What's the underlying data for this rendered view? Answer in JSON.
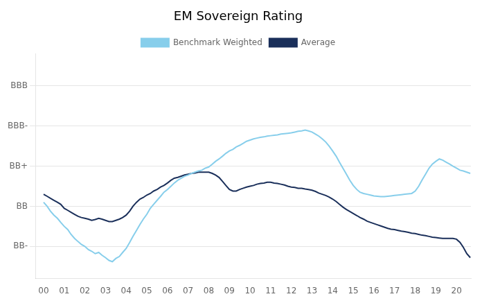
{
  "chart_data": {
    "type": "line",
    "title": "EM Sovereign Rating",
    "legend": "top",
    "grid": "y",
    "xlim": [
      1999.6,
      2020.7
    ],
    "xticks": [
      {
        "value": 2000,
        "label": "00"
      },
      {
        "value": 2001,
        "label": "01"
      },
      {
        "value": 2002,
        "label": "02"
      },
      {
        "value": 2003,
        "label": "03"
      },
      {
        "value": 2004,
        "label": "04"
      },
      {
        "value": 2005,
        "label": "05"
      },
      {
        "value": 2006,
        "label": "06"
      },
      {
        "value": 2007,
        "label": "07"
      },
      {
        "value": 2008,
        "label": "08"
      },
      {
        "value": 2009,
        "label": "09"
      },
      {
        "value": 2010,
        "label": "10"
      },
      {
        "value": 2011,
        "label": "11"
      },
      {
        "value": 2012,
        "label": "12"
      },
      {
        "value": 2013,
        "label": "13"
      },
      {
        "value": 2014,
        "label": "14"
      },
      {
        "value": 2015,
        "label": "15"
      },
      {
        "value": 2016,
        "label": "16"
      },
      {
        "value": 2017,
        "label": "17"
      },
      {
        "value": 2018,
        "label": "18"
      },
      {
        "value": 2019,
        "label": "19"
      },
      {
        "value": 2020,
        "label": "20"
      }
    ],
    "ylim": [
      1.2,
      6.8
    ],
    "yticks": [
      {
        "value": 6,
        "label": "BBB"
      },
      {
        "value": 5,
        "label": "BBB-"
      },
      {
        "value": 4,
        "label": "BB+"
      },
      {
        "value": 3,
        "label": "BB"
      },
      {
        "value": 2,
        "label": "BB-"
      }
    ],
    "x": [
      2000,
      2000.17,
      2000.33,
      2000.5,
      2000.67,
      2000.83,
      2001,
      2001.17,
      2001.33,
      2001.5,
      2001.67,
      2001.83,
      2002,
      2002.17,
      2002.33,
      2002.5,
      2002.67,
      2002.83,
      2003,
      2003.17,
      2003.33,
      2003.5,
      2003.67,
      2003.83,
      2004,
      2004.17,
      2004.33,
      2004.5,
      2004.67,
      2004.83,
      2005,
      2005.17,
      2005.33,
      2005.5,
      2005.67,
      2005.83,
      2006,
      2006.17,
      2006.33,
      2006.5,
      2006.67,
      2006.83,
      2007,
      2007.17,
      2007.33,
      2007.5,
      2007.67,
      2007.83,
      2008,
      2008.17,
      2008.33,
      2008.5,
      2008.67,
      2008.83,
      2009,
      2009.17,
      2009.33,
      2009.5,
      2009.67,
      2009.83,
      2010,
      2010.17,
      2010.33,
      2010.5,
      2010.67,
      2010.83,
      2011,
      2011.17,
      2011.33,
      2011.5,
      2011.67,
      2011.83,
      2012,
      2012.17,
      2012.33,
      2012.5,
      2012.67,
      2012.83,
      2013,
      2013.17,
      2013.33,
      2013.5,
      2013.67,
      2013.83,
      2014,
      2014.17,
      2014.33,
      2014.5,
      2014.67,
      2014.83,
      2015,
      2015.17,
      2015.33,
      2015.5,
      2015.67,
      2015.83,
      2016,
      2016.17,
      2016.33,
      2016.5,
      2016.67,
      2016.83,
      2017,
      2017.17,
      2017.33,
      2017.5,
      2017.67,
      2017.83,
      2018,
      2018.17,
      2018.33,
      2018.5,
      2018.67,
      2018.83,
      2019,
      2019.17,
      2019.33,
      2019.5,
      2019.67,
      2019.83,
      2020,
      2020.17,
      2020.33,
      2020.5,
      2020.67
    ],
    "series": [
      {
        "name": "Benchmark Weighted",
        "color": "#87ceeb",
        "values": [
          3.1,
          3.0,
          2.88,
          2.78,
          2.7,
          2.6,
          2.5,
          2.42,
          2.3,
          2.2,
          2.12,
          2.05,
          2.0,
          1.92,
          1.88,
          1.82,
          1.85,
          1.78,
          1.72,
          1.65,
          1.62,
          1.7,
          1.75,
          1.85,
          1.95,
          2.1,
          2.25,
          2.4,
          2.55,
          2.68,
          2.8,
          2.95,
          3.05,
          3.15,
          3.25,
          3.35,
          3.42,
          3.5,
          3.58,
          3.65,
          3.7,
          3.75,
          3.78,
          3.82,
          3.85,
          3.88,
          3.9,
          3.95,
          3.98,
          4.05,
          4.12,
          4.18,
          4.25,
          4.32,
          4.38,
          4.42,
          4.48,
          4.52,
          4.57,
          4.62,
          4.65,
          4.68,
          4.7,
          4.72,
          4.73,
          4.75,
          4.76,
          4.77,
          4.78,
          4.8,
          4.81,
          4.82,
          4.83,
          4.85,
          4.87,
          4.88,
          4.9,
          4.88,
          4.85,
          4.8,
          4.75,
          4.68,
          4.6,
          4.5,
          4.38,
          4.25,
          4.1,
          3.95,
          3.8,
          3.65,
          3.52,
          3.42,
          3.35,
          3.32,
          3.3,
          3.28,
          3.26,
          3.25,
          3.24,
          3.24,
          3.25,
          3.26,
          3.27,
          3.28,
          3.29,
          3.3,
          3.31,
          3.32,
          3.38,
          3.5,
          3.65,
          3.8,
          3.95,
          4.05,
          4.12,
          4.18,
          4.15,
          4.1,
          4.05,
          4.0,
          3.95,
          3.9,
          3.88,
          3.85,
          3.82
        ]
      },
      {
        "name": "Average",
        "color": "#1a2f5a",
        "values": [
          3.3,
          3.25,
          3.2,
          3.15,
          3.1,
          3.05,
          2.95,
          2.9,
          2.85,
          2.8,
          2.75,
          2.72,
          2.7,
          2.68,
          2.65,
          2.67,
          2.7,
          2.68,
          2.65,
          2.62,
          2.62,
          2.65,
          2.68,
          2.72,
          2.78,
          2.88,
          3.0,
          3.1,
          3.18,
          3.22,
          3.28,
          3.32,
          3.38,
          3.42,
          3.48,
          3.52,
          3.58,
          3.65,
          3.7,
          3.72,
          3.75,
          3.78,
          3.8,
          3.82,
          3.83,
          3.85,
          3.85,
          3.85,
          3.85,
          3.82,
          3.78,
          3.72,
          3.62,
          3.52,
          3.42,
          3.38,
          3.38,
          3.42,
          3.45,
          3.48,
          3.5,
          3.52,
          3.55,
          3.57,
          3.58,
          3.6,
          3.6,
          3.58,
          3.57,
          3.55,
          3.53,
          3.5,
          3.48,
          3.47,
          3.45,
          3.45,
          3.43,
          3.42,
          3.4,
          3.37,
          3.33,
          3.3,
          3.27,
          3.23,
          3.18,
          3.12,
          3.05,
          2.98,
          2.92,
          2.87,
          2.82,
          2.77,
          2.72,
          2.68,
          2.63,
          2.6,
          2.57,
          2.54,
          2.51,
          2.48,
          2.45,
          2.43,
          2.42,
          2.4,
          2.38,
          2.37,
          2.35,
          2.33,
          2.32,
          2.3,
          2.28,
          2.27,
          2.25,
          2.23,
          2.22,
          2.21,
          2.2,
          2.2,
          2.2,
          2.2,
          2.18,
          2.1,
          1.98,
          1.82,
          1.72
        ]
      }
    ]
  }
}
